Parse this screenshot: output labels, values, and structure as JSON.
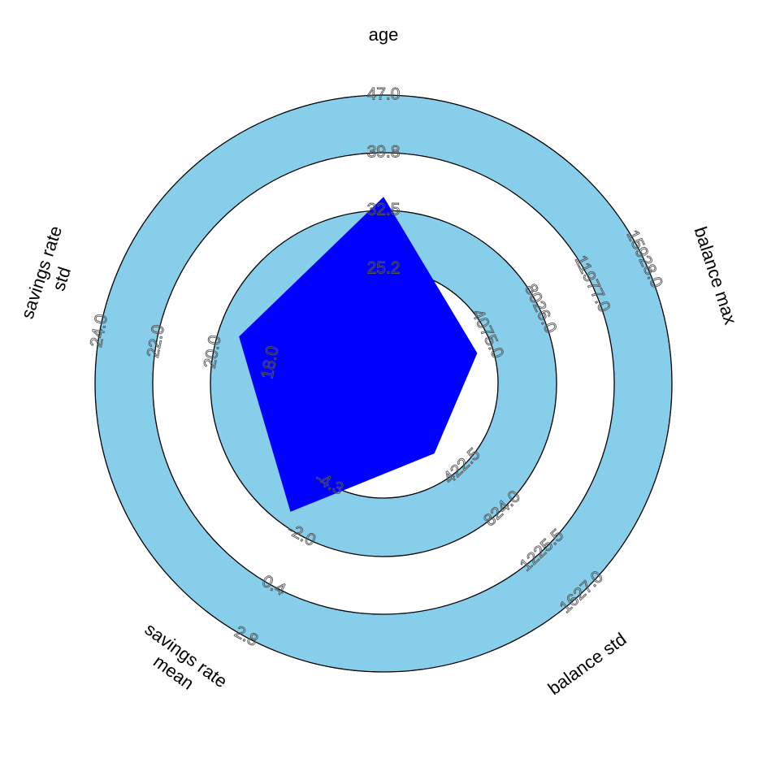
{
  "chart_data": {
    "type": "radar",
    "title": "",
    "axes": [
      {
        "key": "age",
        "label_lines": [
          "age"
        ],
        "range": [
          18.0,
          47.0
        ],
        "ticks": [
          "25.2",
          "32.5",
          "39.8",
          "47.0"
        ]
      },
      {
        "key": "balance_max",
        "label_lines": [
          "balance max"
        ],
        "range": [
          124.0,
          15928.0
        ],
        "ticks": [
          "4075.0",
          "8026.0",
          "11977.0",
          "15928.0"
        ]
      },
      {
        "key": "balance_std",
        "label_lines": [
          "balance std"
        ],
        "range": [
          21.0,
          1627.0
        ],
        "ticks": [
          "422.5",
          "824.0",
          "1225.5",
          "1627.0"
        ]
      },
      {
        "key": "savings_rate_mean",
        "label_lines": [
          "savings rate",
          "mean"
        ],
        "range": [
          -6.7,
          2.8
        ],
        "ticks": [
          "-4.3",
          "-2.0",
          "0.4",
          "2.8"
        ]
      },
      {
        "key": "savings_rate_std",
        "label_lines": [
          "savings rate",
          "std"
        ],
        "range": [
          16.0,
          24.0
        ],
        "ticks": [
          "18.0",
          "20.0",
          "22.0",
          "24.0"
        ]
      }
    ],
    "series": [
      {
        "values": [
          36.7,
          5500.0,
          500.0,
          -1.5,
          20.2
        ],
        "color": "#0000ff"
      }
    ],
    "ring_colors": [
      "#ffffff",
      "#87ceeb"
    ],
    "ring_stroke": "#000000",
    "legend": "none",
    "grid": false
  }
}
